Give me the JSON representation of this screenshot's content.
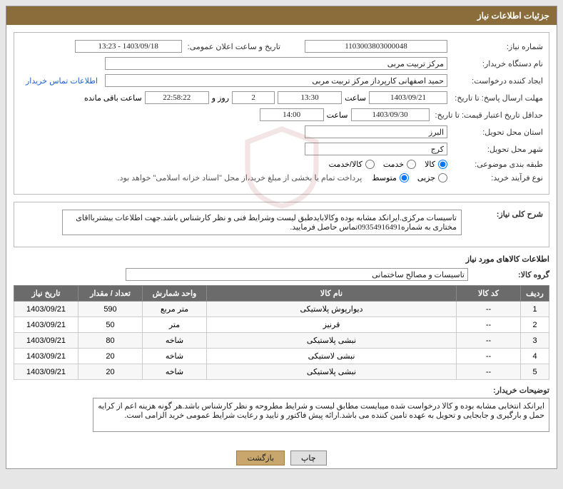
{
  "header": {
    "title": "جزئیات اطلاعات نیاز"
  },
  "fields": {
    "need_no_label": "شماره نیاز:",
    "need_no": "1103003803000048",
    "announce_label": "تاریخ و ساعت اعلان عمومی:",
    "announce_value": "1403/09/18 - 13:23",
    "buyer_org_label": "نام دستگاه خریدار:",
    "buyer_org": "مرکز تربیت مربی",
    "requester_label": "ایجاد کننده درخواست:",
    "requester": "حمید اصفهانی کارپرداز مرکز تربیت مربی",
    "contact_link": "اطلاعات تماس خریدار",
    "deadline_label": "مهلت ارسال پاسخ: تا تاریخ:",
    "deadline_date": "1403/09/21",
    "time_word": "ساعت",
    "deadline_time": "13:30",
    "days_remaining": "2",
    "days_and": "روز و",
    "hms_remaining": "22:58:22",
    "remaining_suffix": "ساعت باقی مانده",
    "validity_label": "حداقل تاریخ اعتبار قیمت: تا تاریخ:",
    "validity_date": "1403/09/30",
    "validity_time": "14:00",
    "province_label": "استان محل تحویل:",
    "province": "البرز",
    "city_label": "شهر محل تحویل:",
    "city": "کرج",
    "category_label": "طبقه بندی موضوعی:",
    "cat_goods": "کالا",
    "cat_service": "خدمت",
    "cat_goods_service": "کالا/خدمت",
    "process_label": "نوع فرآیند خرید:",
    "proc_minor": "جزیی",
    "proc_medium": "متوسط",
    "payment_note": "پرداخت تمام یا بخشی از مبلغ خرید،از محل \"اسناد خزانه اسلامی\" خواهد بود.",
    "desc_label": "شرح کلی نیاز:",
    "desc_text": "تاسیسات مرکزی.ایرانکد مشابه بوده وکالابایدطبق لیست وشرایط فنی و نظر کارشناس باشد.جهت اطلاعات بیشتربااقای مختاری به شماره09354916491تماس حاصل فرمایید.",
    "items_title": "اطلاعات کالاهای مورد نیاز",
    "group_label": "گروه کالا:",
    "group_value": "تاسیسات و مصالح ساختمانی",
    "buyer_notes_label": "توضیحات خریدار:",
    "buyer_notes": "ایرانکد انتخابی مشابه بوده و کالا درخواست شده میبایست مطابق لیست و شرایط مطروحه و نظر کارشناس باشد.هر گونه هزینه اعم از کرایه حمل و بارگیری و جابجایی و تحویل به عهده تامین کننده می باشد.ارائه پیش فاکتور و تایید و رعایت شرایط عمومی خرید الزامی است."
  },
  "table": {
    "columns": [
      "ردیف",
      "کد کالا",
      "نام کالا",
      "واحد شمارش",
      "تعداد / مقدار",
      "تاریخ نیاز"
    ],
    "col_widths": [
      "40px",
      "90px",
      "auto",
      "90px",
      "90px",
      "90px"
    ],
    "rows": [
      [
        "1",
        "--",
        "دیوارپوش پلاستیکی",
        "متر مربع",
        "590",
        "1403/09/21"
      ],
      [
        "2",
        "--",
        "قرنیز",
        "متر",
        "50",
        "1403/09/21"
      ],
      [
        "3",
        "--",
        "نبشی پلاستیکی",
        "شاخه",
        "80",
        "1403/09/21"
      ],
      [
        "4",
        "--",
        "نبشی لاستیکی",
        "شاخه",
        "20",
        "1403/09/21"
      ],
      [
        "5",
        "--",
        "نبشی پلاستیکی",
        "شاخه",
        "20",
        "1403/09/21"
      ]
    ]
  },
  "buttons": {
    "print": "چاپ",
    "back": "بازگشت"
  },
  "colors": {
    "header_bg": "#8a6d3b",
    "th_bg": "#6b6b6b",
    "btn_back_bg": "#c9a66b"
  }
}
